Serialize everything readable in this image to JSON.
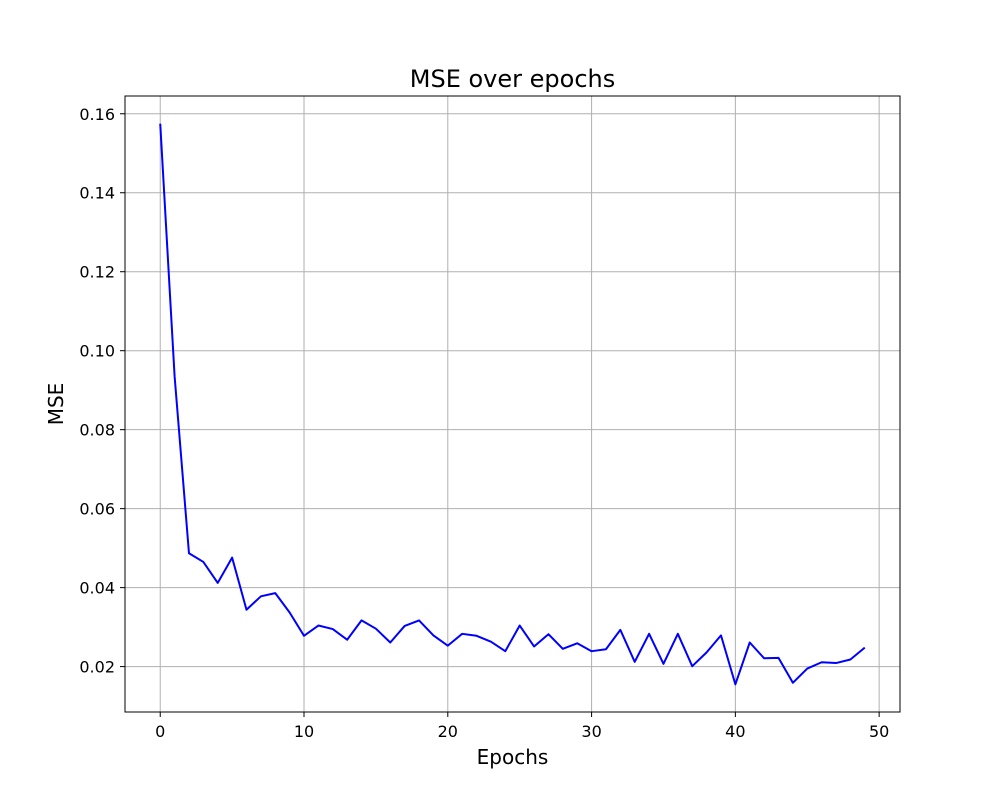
{
  "chart_data": {
    "type": "line",
    "title": "MSE over epochs",
    "xlabel": "Epochs",
    "ylabel": "MSE",
    "xlim": [
      -2.45,
      51.45
    ],
    "ylim": [
      0.0085,
      0.1645
    ],
    "xticks": [
      0,
      10,
      20,
      30,
      40,
      50
    ],
    "yticks": [
      0.02,
      0.04,
      0.06,
      0.08,
      0.1,
      0.12,
      0.14,
      0.16
    ],
    "xtick_labels": [
      "0",
      "10",
      "20",
      "30",
      "40",
      "50"
    ],
    "ytick_labels": [
      "0.02",
      "0.04",
      "0.06",
      "0.08",
      "0.10",
      "0.12",
      "0.14",
      "0.16"
    ],
    "grid": true,
    "series": [
      {
        "color": "#0000ff",
        "x": [
          0,
          1,
          2,
          3,
          4,
          5,
          6,
          7,
          8,
          9,
          10,
          11,
          12,
          13,
          14,
          15,
          16,
          17,
          18,
          19,
          20,
          21,
          22,
          23,
          24,
          25,
          26,
          27,
          28,
          29,
          30,
          31,
          32,
          33,
          34,
          35,
          36,
          37,
          38,
          39,
          40,
          41,
          42,
          43,
          44,
          45,
          46,
          47,
          48,
          49
        ],
        "values": [
          0.1575,
          0.0935,
          0.0487,
          0.0465,
          0.0412,
          0.0476,
          0.0344,
          0.0378,
          0.0386,
          0.0337,
          0.0278,
          0.0304,
          0.0295,
          0.0268,
          0.0317,
          0.0296,
          0.0261,
          0.0303,
          0.0317,
          0.0279,
          0.0253,
          0.0283,
          0.0278,
          0.0263,
          0.0239,
          0.0304,
          0.0251,
          0.0282,
          0.0245,
          0.0259,
          0.0239,
          0.0244,
          0.0293,
          0.0212,
          0.0283,
          0.0207,
          0.0283,
          0.0201,
          0.0236,
          0.0279,
          0.0155,
          0.0261,
          0.0221,
          0.0222,
          0.0159,
          0.0195,
          0.0211,
          0.0209,
          0.0218,
          0.0248
        ]
      }
    ]
  }
}
